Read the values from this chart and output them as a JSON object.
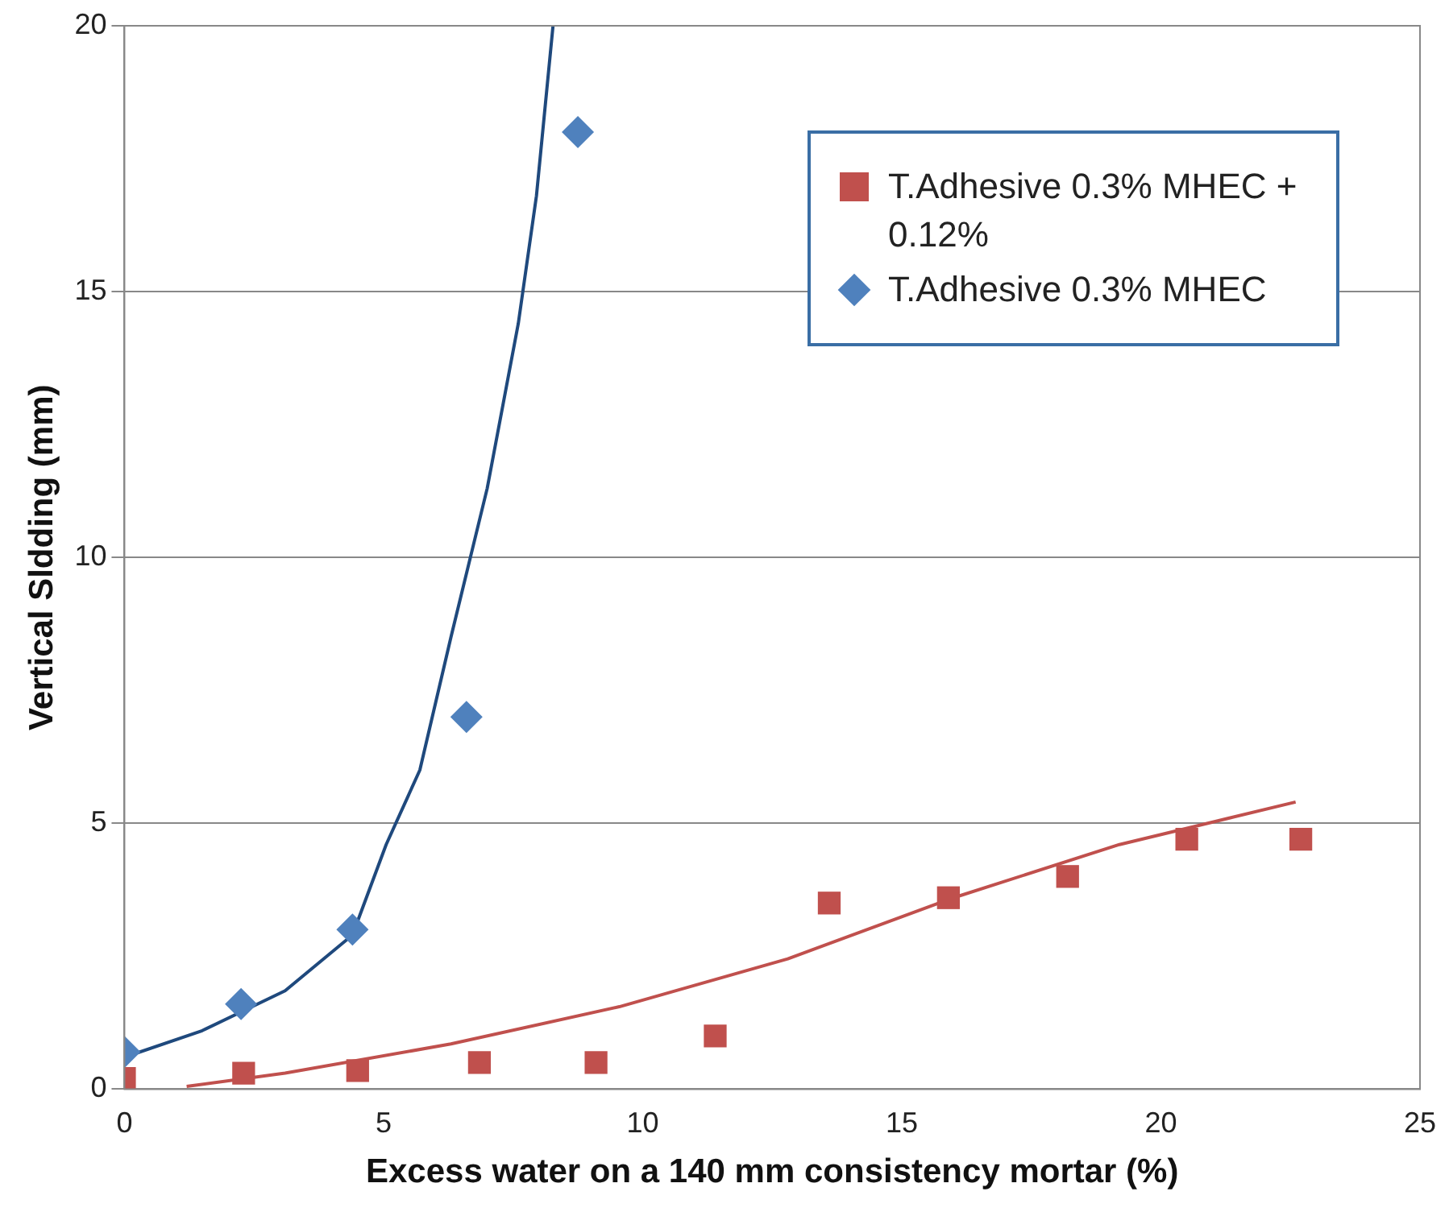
{
  "chart_data": {
    "type": "scatter",
    "xlabel": "Excess water on a 140 mm consistency mortar (%)",
    "ylabel": "Vertical Sldding (mm)",
    "xlim": [
      0,
      25
    ],
    "ylim": [
      0,
      20
    ],
    "xticks": [
      0,
      5,
      10,
      15,
      20,
      25
    ],
    "yticks": [
      0,
      5,
      10,
      15,
      20
    ],
    "grid": "y",
    "legend": "top right",
    "series": [
      {
        "name": "T.Adhesive 0.3% MHEC + 0.12%",
        "color": "#c0504d",
        "marker": "square",
        "x": [
          0,
          2.3,
          4.5,
          6.85,
          9.1,
          11.4,
          13.6,
          15.9,
          18.2,
          20.5,
          22.7
        ],
        "values": [
          0.2,
          0.3,
          0.35,
          0.5,
          0.5,
          1.0,
          3.5,
          3.6,
          4.0,
          4.7,
          4.7
        ]
      },
      {
        "name": "T.Adhesive 0.3% MHEC",
        "color": "#4f81bd",
        "marker": "diamond",
        "x": [
          0,
          2.25,
          4.4,
          6.6,
          8.75
        ],
        "values": [
          0.7,
          1.6,
          3.0,
          7.0,
          18.0
        ]
      },
      {
        "type": "line",
        "color": "#c0504d",
        "marker": "none",
        "x": [
          1.2,
          3.1,
          6.3,
          9.55,
          12.8,
          16.0,
          19.2,
          22.6
        ],
        "values": [
          0.05,
          0.3,
          0.85,
          1.55,
          2.45,
          3.6,
          4.6,
          5.4
        ]
      },
      {
        "type": "line",
        "color": "#1f497d",
        "marker": "none",
        "x": [
          0,
          1.5,
          3.1,
          4.4,
          5.05,
          5.7,
          6.3,
          7.0,
          7.6,
          7.95,
          8.27
        ],
        "values": [
          0.6,
          1.1,
          1.85,
          2.9,
          4.6,
          6.0,
          8.5,
          11.3,
          14.4,
          16.8,
          20
        ]
      }
    ]
  }
}
